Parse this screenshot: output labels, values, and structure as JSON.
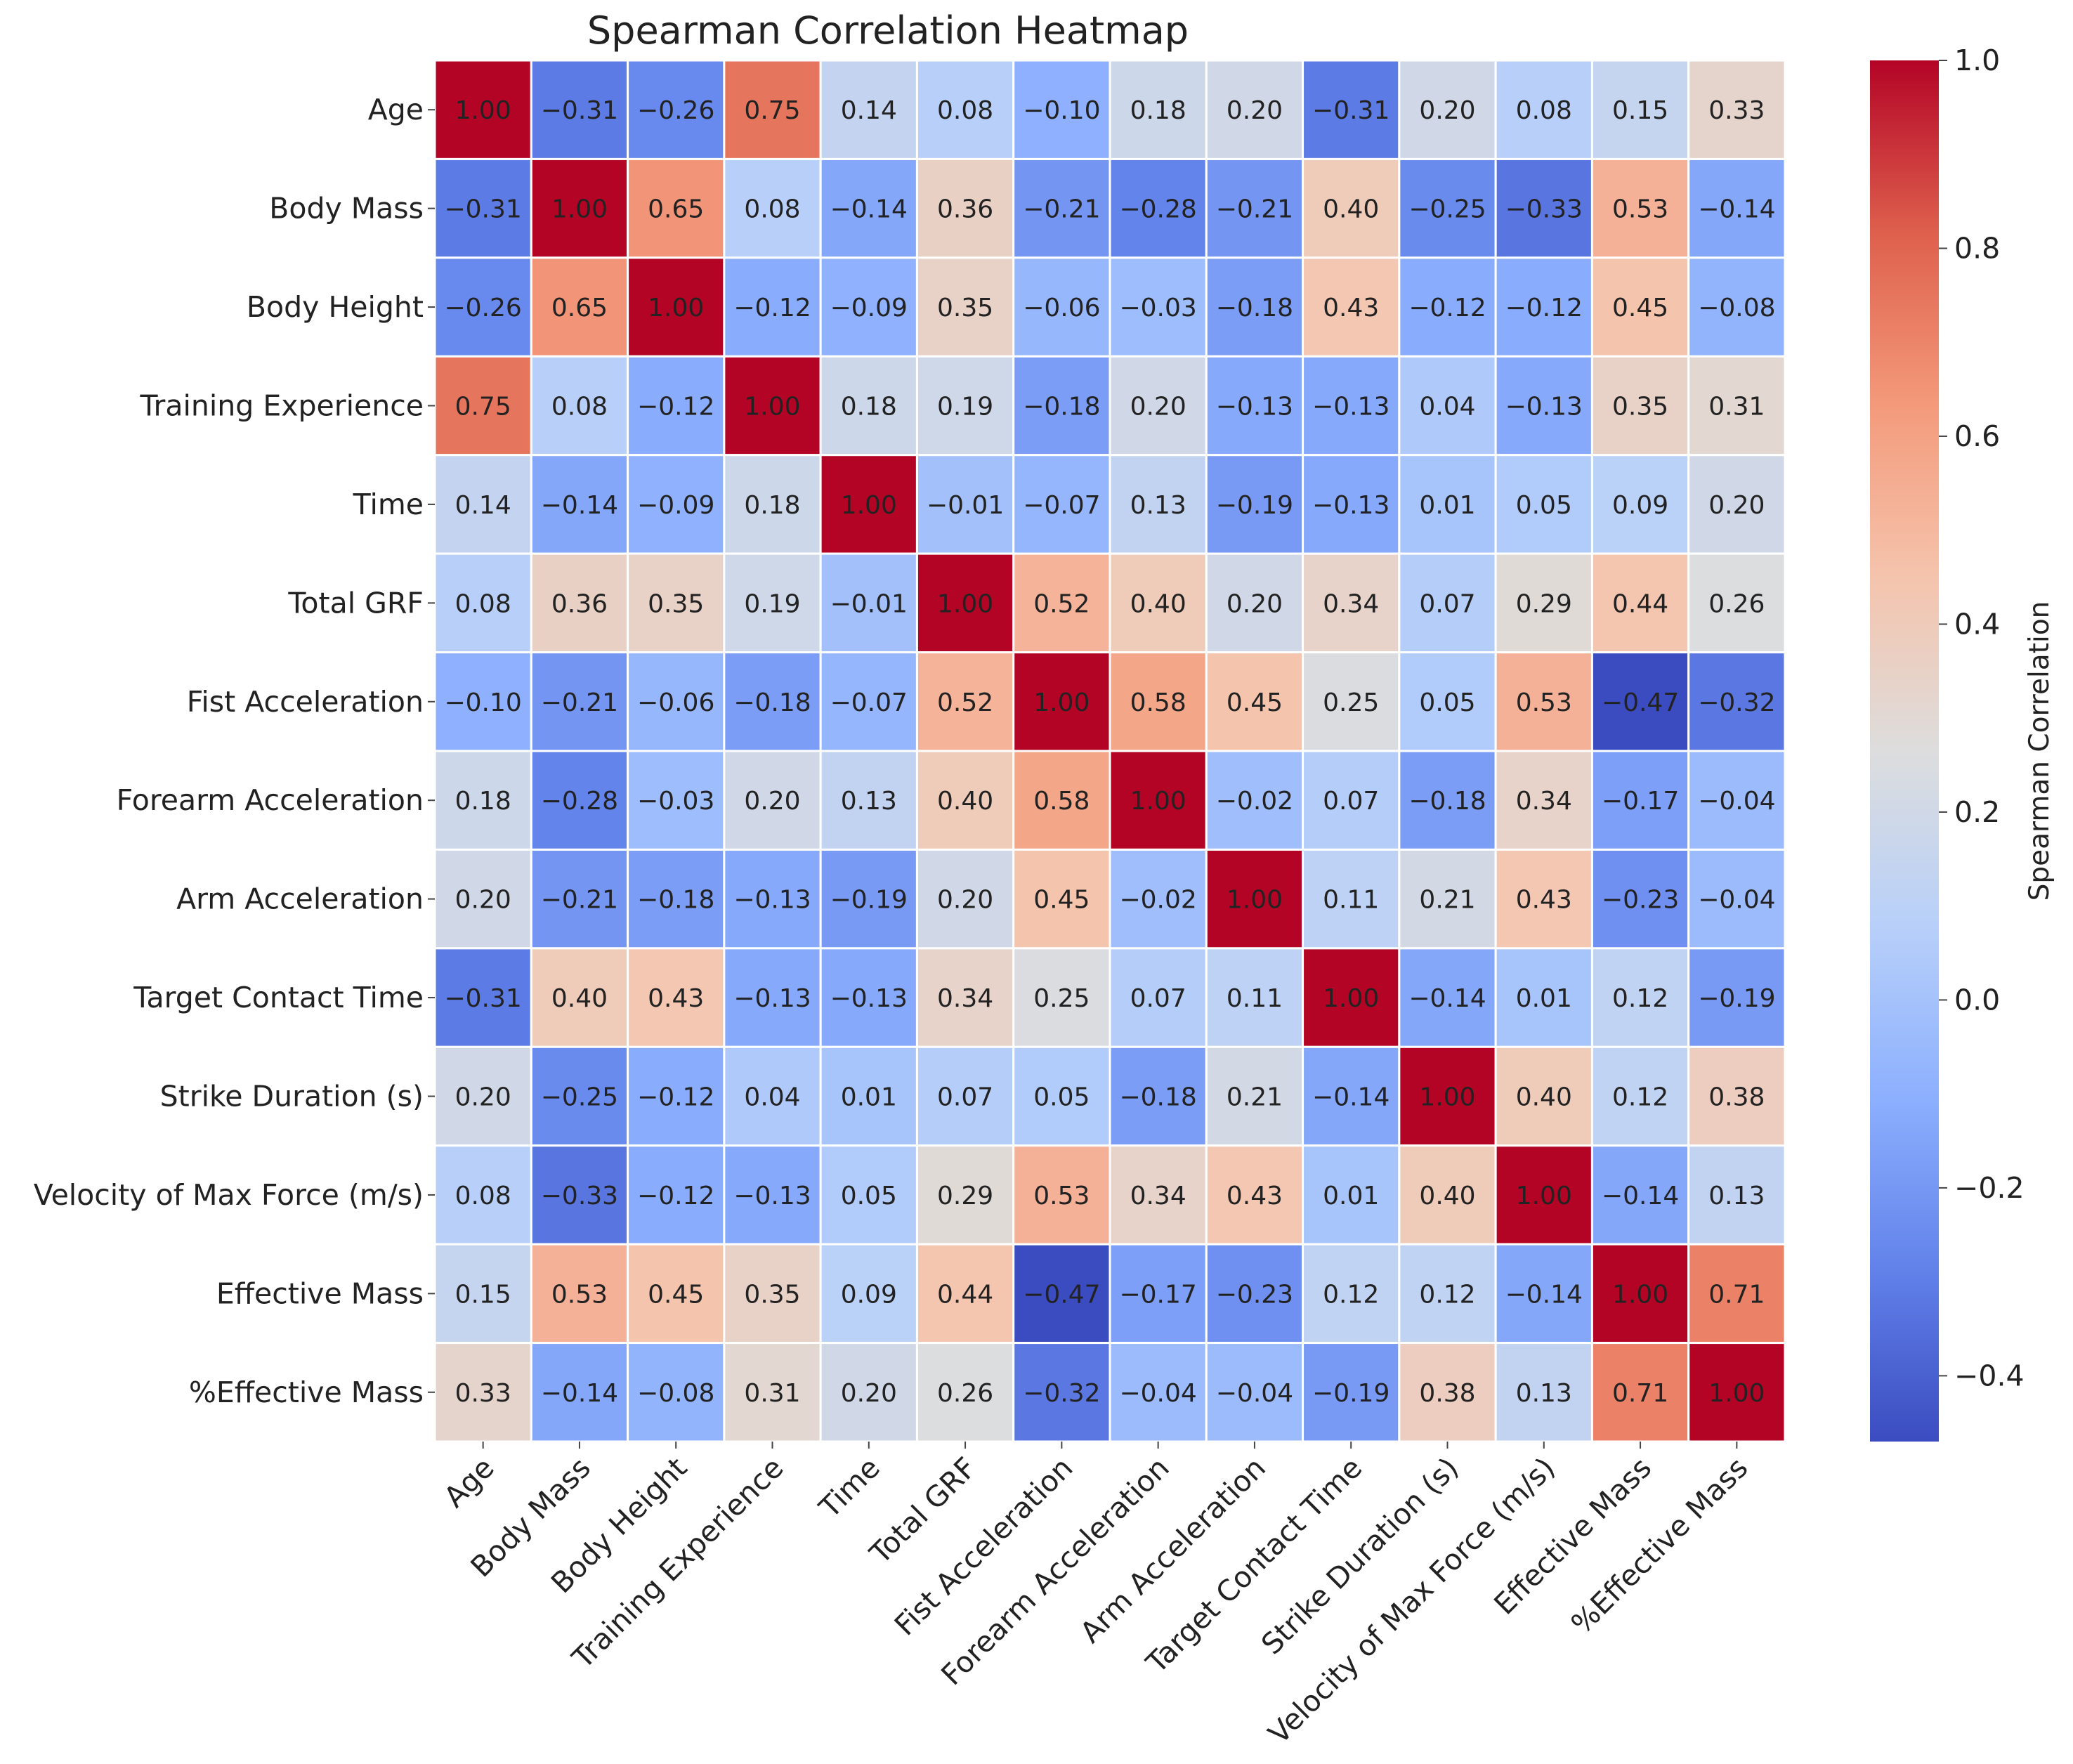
{
  "chart_data": {
    "type": "heatmap",
    "title": "Spearman Correlation Heatmap",
    "labels": [
      "Age",
      "Body Mass",
      "Body Height",
      "Training Experience",
      "Time",
      "Total GRF",
      "Fist Acceleration",
      "Forearm Acceleration",
      "Arm Acceleration",
      "Target Contact Time",
      "Strike Duration (s)",
      "Velocity of Max Force (m/s)",
      "Effective Mass",
      "%Effective Mass"
    ],
    "matrix": [
      [
        1.0,
        -0.31,
        -0.26,
        0.75,
        0.14,
        0.08,
        -0.1,
        0.18,
        0.2,
        -0.31,
        0.2,
        0.08,
        0.15,
        0.33
      ],
      [
        -0.31,
        1.0,
        0.65,
        0.08,
        -0.14,
        0.36,
        -0.21,
        -0.28,
        -0.21,
        0.4,
        -0.25,
        -0.33,
        0.53,
        -0.14
      ],
      [
        -0.26,
        0.65,
        1.0,
        -0.12,
        -0.09,
        0.35,
        -0.06,
        -0.03,
        -0.18,
        0.43,
        -0.12,
        -0.12,
        0.45,
        -0.08
      ],
      [
        0.75,
        0.08,
        -0.12,
        1.0,
        0.18,
        0.19,
        -0.18,
        0.2,
        -0.13,
        -0.13,
        0.04,
        -0.13,
        0.35,
        0.31
      ],
      [
        0.14,
        -0.14,
        -0.09,
        0.18,
        1.0,
        -0.01,
        -0.07,
        0.13,
        -0.19,
        -0.13,
        0.01,
        0.05,
        0.09,
        0.2
      ],
      [
        0.08,
        0.36,
        0.35,
        0.19,
        -0.01,
        1.0,
        0.52,
        0.4,
        0.2,
        0.34,
        0.07,
        0.29,
        0.44,
        0.26
      ],
      [
        -0.1,
        -0.21,
        -0.06,
        -0.18,
        -0.07,
        0.52,
        1.0,
        0.58,
        0.45,
        0.25,
        0.05,
        0.53,
        -0.47,
        -0.32
      ],
      [
        0.18,
        -0.28,
        -0.03,
        0.2,
        0.13,
        0.4,
        0.58,
        1.0,
        -0.02,
        0.07,
        -0.18,
        0.34,
        -0.17,
        -0.04
      ],
      [
        0.2,
        -0.21,
        -0.18,
        -0.13,
        -0.19,
        0.2,
        0.45,
        -0.02,
        1.0,
        0.11,
        0.21,
        0.43,
        -0.23,
        -0.04
      ],
      [
        -0.31,
        0.4,
        0.43,
        -0.13,
        -0.13,
        0.34,
        0.25,
        0.07,
        0.11,
        1.0,
        -0.14,
        0.01,
        0.12,
        -0.19
      ],
      [
        0.2,
        -0.25,
        -0.12,
        0.04,
        0.01,
        0.07,
        0.05,
        -0.18,
        0.21,
        -0.14,
        1.0,
        0.4,
        0.12,
        0.38
      ],
      [
        0.08,
        -0.33,
        -0.12,
        -0.13,
        0.05,
        0.29,
        0.53,
        0.34,
        0.43,
        0.01,
        0.4,
        1.0,
        -0.14,
        0.13
      ],
      [
        0.15,
        0.53,
        0.45,
        0.35,
        0.09,
        0.44,
        -0.47,
        -0.17,
        -0.23,
        0.12,
        0.12,
        -0.14,
        1.0,
        0.71
      ],
      [
        0.33,
        -0.14,
        -0.08,
        0.31,
        0.2,
        0.26,
        -0.32,
        -0.04,
        -0.04,
        -0.19,
        0.38,
        0.13,
        0.71,
        1.0
      ]
    ],
    "colormap": "coolwarm",
    "vmin": -0.47,
    "vmax": 1.0,
    "colorbar": {
      "label": "Spearman Correlation",
      "ticks": [
        -0.4,
        -0.2,
        0.0,
        0.2,
        0.4,
        0.6,
        0.8,
        1.0
      ],
      "tick_labels": [
        "−0.4",
        "−0.2",
        "0.0",
        "0.2",
        "0.4",
        "0.6",
        "0.8",
        "1.0"
      ]
    }
  }
}
